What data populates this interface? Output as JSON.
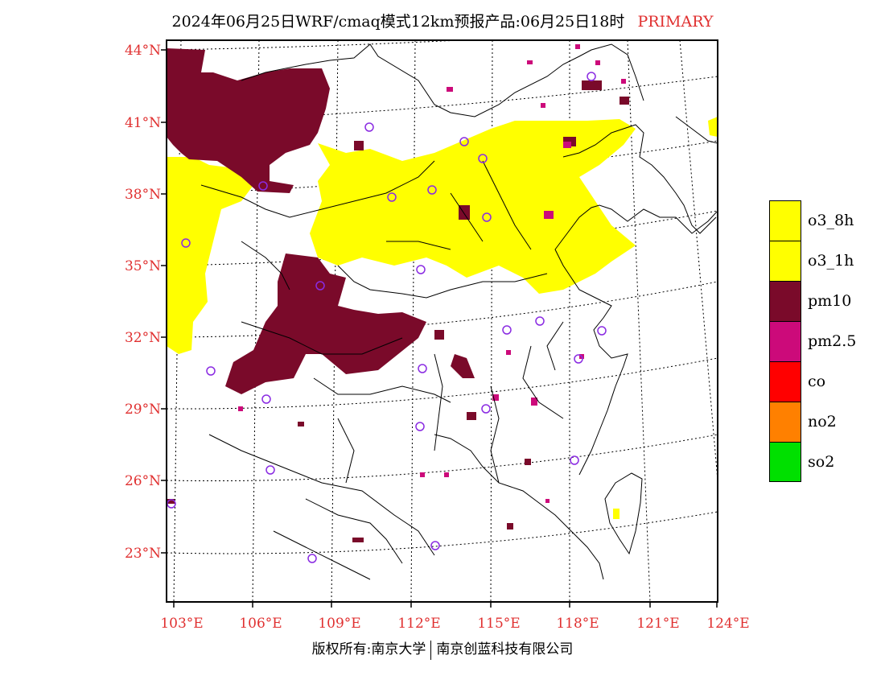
{
  "title": {
    "main": "2024年06月25日WRF/cmaq模式12km预报产品:06月25日18时",
    "tag": "PRIMARY"
  },
  "axes": {
    "lat_labels": [
      "44°N",
      "41°N",
      "38°N",
      "35°N",
      "32°N",
      "29°N",
      "26°N",
      "23°N"
    ],
    "lon_labels": [
      "103°E",
      "106°E",
      "109°E",
      "112°E",
      "115°E",
      "118°E",
      "121°E",
      "124°E"
    ]
  },
  "legend": [
    {
      "label": "o3_8h",
      "color": "#ffff00"
    },
    {
      "label": "o3_1h",
      "color": "#ffff00"
    },
    {
      "label": "pm10",
      "color": "#7a0a2a"
    },
    {
      "label": "pm2.5",
      "color": "#cc0a7a"
    },
    {
      "label": "co",
      "color": "#ff0000"
    },
    {
      "label": "no2",
      "color": "#ff8000"
    },
    {
      "label": "so2",
      "color": "#00e000"
    }
  ],
  "footer": {
    "left": "版权所有:南京大学",
    "right": "南京创蓝科技有限公司"
  },
  "colors": {
    "axis_label": "#e03030",
    "station_marker": "#8a2be2",
    "border": "#000000"
  }
}
